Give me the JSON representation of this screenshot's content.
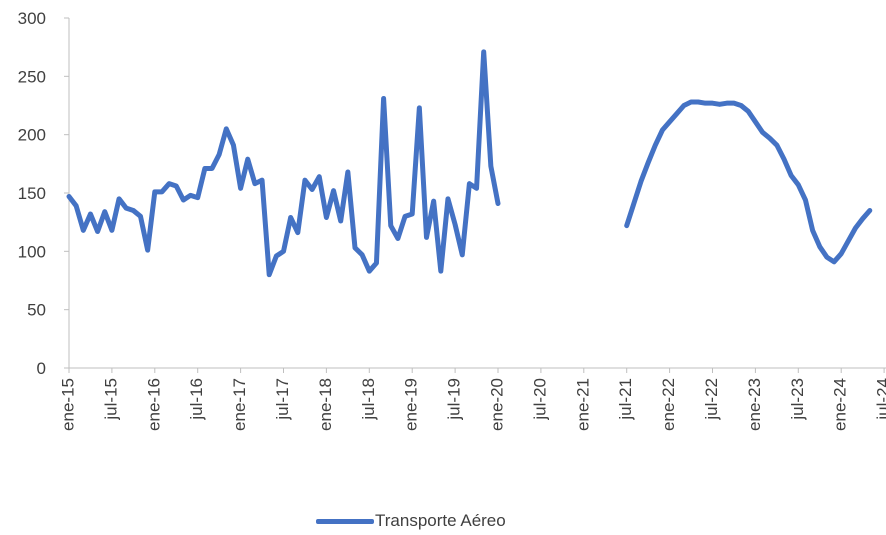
{
  "chart_data": {
    "type": "line",
    "title": "",
    "xlabel": "",
    "ylabel": "",
    "ylim": [
      0,
      300
    ],
    "yticks": [
      0,
      50,
      100,
      150,
      200,
      250,
      300
    ],
    "grid": false,
    "legend_position": "bottom",
    "color": "#4472C4",
    "x_tick_labels": [
      "ene-15",
      "jul-15",
      "ene-16",
      "jul-16",
      "ene-17",
      "jul-17",
      "ene-18",
      "jul-18",
      "ene-19",
      "jul-19",
      "ene-20",
      "jul-20",
      "ene-21",
      "jul-21",
      "ene-22",
      "jul-22",
      "ene-23",
      "jul-23",
      "ene-24",
      "jul-24"
    ],
    "start_month": "ene-15",
    "series": [
      {
        "name": "Transporte Aéreo",
        "values": [
          147,
          139,
          118,
          132,
          117,
          134,
          118,
          145,
          137,
          135,
          130,
          101,
          151,
          151,
          158,
          156,
          144,
          148,
          146,
          171,
          171,
          183,
          205,
          191,
          154,
          179,
          158,
          161,
          80,
          96,
          100,
          129,
          116,
          161,
          153,
          164,
          129,
          152,
          126,
          168,
          103,
          97,
          83,
          90,
          231,
          122,
          111,
          130,
          132,
          223,
          112,
          143,
          83,
          145,
          123,
          97,
          158,
          154,
          271,
          173,
          141,
          null,
          null,
          null,
          null,
          null,
          null,
          null,
          null,
          null,
          null,
          null,
          null,
          null,
          null,
          null,
          null,
          null,
          122,
          141,
          160,
          176,
          191,
          204,
          211,
          218,
          225,
          228,
          228,
          227,
          227,
          226,
          227,
          227,
          225,
          220,
          211,
          202,
          197,
          191,
          179,
          165,
          157,
          144,
          118,
          104,
          95,
          91,
          98,
          109,
          120,
          128,
          135
        ]
      }
    ]
  },
  "legend": {
    "label": "Transporte Aéreo"
  }
}
